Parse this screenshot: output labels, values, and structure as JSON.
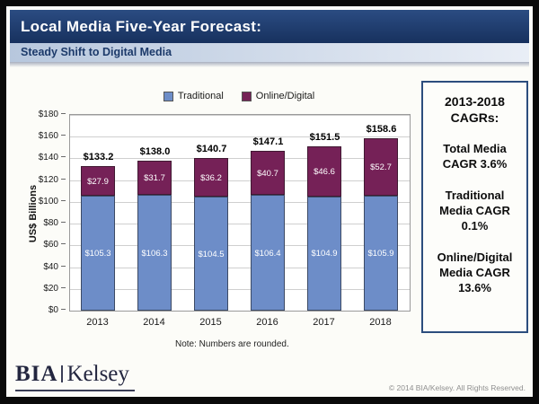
{
  "header": {
    "title": "Local Media Five-Year Forecast:",
    "subtitle": "Steady Shift to Digital Media"
  },
  "legend": [
    {
      "label": "Traditional",
      "color": "#6d8dc8"
    },
    {
      "label": "Online/Digital",
      "color": "#752157"
    }
  ],
  "chart_data": {
    "type": "bar",
    "stacked": true,
    "title": "Local Media Five-Year Forecast",
    "categories": [
      "2013",
      "2014",
      "2015",
      "2016",
      "2017",
      "2018"
    ],
    "series": [
      {
        "name": "Traditional",
        "color": "#6d8dc8",
        "values": [
          105.3,
          106.3,
          104.5,
          106.4,
          104.9,
          105.9
        ],
        "labels": [
          "$105.3",
          "$106.3",
          "$104.5",
          "$106.4",
          "$104.9",
          "$105.9"
        ]
      },
      {
        "name": "Online/Digital",
        "color": "#752157",
        "values": [
          27.9,
          31.7,
          36.2,
          40.7,
          46.6,
          52.7
        ],
        "labels": [
          "$27.9",
          "$31.7",
          "$36.2",
          "$40.7",
          "$46.6",
          "$52.7"
        ]
      }
    ],
    "totals": [
      133.2,
      138.0,
      140.7,
      147.1,
      151.5,
      158.6
    ],
    "total_labels": [
      "$133.2",
      "$138.0",
      "$140.7",
      "$147.1",
      "$151.5",
      "$158.6"
    ],
    "xlabel": "",
    "ylabel": "US$ Billions",
    "ylim": [
      0,
      180
    ],
    "ytick_step": 20,
    "ytick_labels": [
      "$0",
      "$20",
      "$40",
      "$60",
      "$80",
      "$100",
      "$120",
      "$140",
      "$160",
      "$180"
    ],
    "grid": true,
    "legend_position": "top"
  },
  "cagr_box": {
    "title": "2013-2018 CAGRs:",
    "items": [
      "Total Media CAGR 3.6%",
      "Traditional Media CAGR 0.1%",
      "Online/Digital Media CAGR 13.6%"
    ]
  },
  "note": "Note: Numbers are rounded.",
  "footer": {
    "logo_bia": "BIA",
    "logo_kelsey": "Kelsey",
    "copyright": "© 2014 BIA/Kelsey.  All Rights Reserved."
  }
}
